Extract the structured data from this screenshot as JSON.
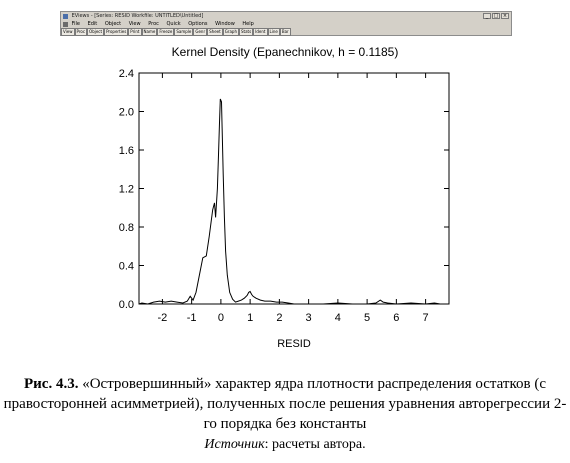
{
  "window": {
    "title": "EViews - [Series: RESID   Workfile: UNTITLED\\Untitled]",
    "controls": [
      "_",
      "□",
      "×"
    ],
    "menu": [
      "File",
      "Edit",
      "Object",
      "View",
      "Proc",
      "Quick",
      "Options",
      "Window",
      "Help"
    ],
    "toolbar": [
      "View",
      "Proc",
      "Object",
      "Properties",
      "Print",
      "Name",
      "Freeze",
      "Sample",
      "Genr",
      "Sheet",
      "Graph",
      "Stats",
      "Ident",
      "Line",
      "Bar"
    ]
  },
  "chart_data": {
    "type": "line",
    "title": "Kernel Density (Epanechnikov, h =  0.1185)",
    "xlabel": "RESID",
    "ylabel": "",
    "xlim": [
      -2.8,
      7.8
    ],
    "ylim": [
      0,
      2.4
    ],
    "xticks": [
      -2,
      -1,
      0,
      1,
      2,
      3,
      4,
      5,
      6,
      7
    ],
    "yticks": [
      0.0,
      0.4,
      0.8,
      1.2,
      1.6,
      2.0,
      2.4
    ],
    "ytick_labels": [
      "0.0",
      "0.4",
      "0.8",
      "1.2",
      "1.6",
      "2.0",
      "2.4"
    ],
    "xtick_labels": [
      "-2",
      "-1",
      "0",
      "1",
      "2",
      "3",
      "4",
      "5",
      "6",
      "7"
    ],
    "grid": false,
    "series": [
      {
        "color": "#000000",
        "x": [
          -2.8,
          -2.7,
          -2.5,
          -2.3,
          -2.1,
          -1.9,
          -1.7,
          -1.5,
          -1.3,
          -1.15,
          -1.05,
          -0.95,
          -0.85,
          -0.75,
          -0.62,
          -0.5,
          -0.4,
          -0.35,
          -0.28,
          -0.22,
          -0.18,
          -0.12,
          -0.08,
          -0.05,
          -0.02,
          0.02,
          0.05,
          0.08,
          0.12,
          0.16,
          0.22,
          0.3,
          0.4,
          0.5,
          0.6,
          0.7,
          0.8,
          0.9,
          0.95,
          1.0,
          1.05,
          1.1,
          1.2,
          1.35,
          1.5,
          1.7,
          1.9,
          2.1,
          2.3,
          2.5,
          3.0,
          3.5,
          4.0,
          4.5,
          5.0,
          5.3,
          5.45,
          5.55,
          5.7,
          6.0,
          6.5,
          7.0,
          7.3,
          7.5,
          7.8
        ],
        "y": [
          0.0,
          0.01,
          0.0,
          0.02,
          0.03,
          0.02,
          0.03,
          0.02,
          0.01,
          0.03,
          0.08,
          0.04,
          0.12,
          0.28,
          0.48,
          0.5,
          0.7,
          0.82,
          0.98,
          1.05,
          0.9,
          1.2,
          1.55,
          1.85,
          2.13,
          2.1,
          1.75,
          1.35,
          0.9,
          0.55,
          0.3,
          0.12,
          0.05,
          0.02,
          0.03,
          0.04,
          0.06,
          0.09,
          0.12,
          0.13,
          0.1,
          0.08,
          0.06,
          0.04,
          0.03,
          0.03,
          0.02,
          0.02,
          0.01,
          0.0,
          0.0,
          0.0,
          0.01,
          0.0,
          0.0,
          0.01,
          0.04,
          0.02,
          0.01,
          0.0,
          0.01,
          0.0,
          0.01,
          0.0,
          0.0
        ]
      }
    ]
  },
  "caption": {
    "figure_number": "Рис. 4.3.",
    "text": " «Островершинный» характер ядра плотности распределения остатков (с правосторонней асимметрией), полученных после решения уравнения авторегрессии 2-го порядка без константы"
  },
  "source": {
    "label": "Источник",
    "text": ": расчеты автора."
  }
}
